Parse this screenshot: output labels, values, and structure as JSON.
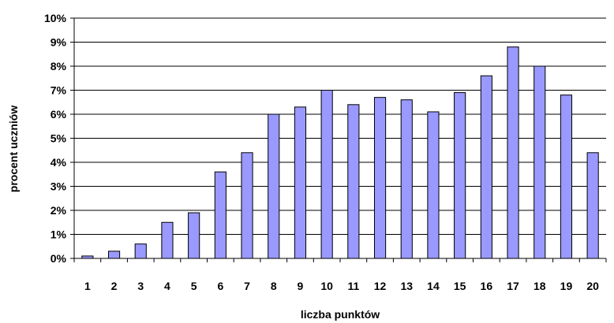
{
  "chart_data": {
    "type": "bar",
    "categories": [
      "1",
      "2",
      "3",
      "4",
      "5",
      "6",
      "7",
      "8",
      "9",
      "10",
      "11",
      "12",
      "13",
      "14",
      "15",
      "16",
      "17",
      "18",
      "19",
      "20"
    ],
    "values": [
      0.1,
      0.3,
      0.6,
      1.5,
      1.9,
      3.6,
      4.4,
      6.0,
      6.3,
      7.0,
      6.4,
      6.7,
      6.6,
      6.1,
      6.9,
      7.6,
      8.8,
      8.0,
      6.8,
      4.4
    ],
    "ylim": [
      0,
      10
    ],
    "yticks": [
      0,
      1,
      2,
      3,
      4,
      5,
      6,
      7,
      8,
      9,
      10
    ],
    "ytick_labels": [
      "0%",
      "1%",
      "2%",
      "3%",
      "4%",
      "5%",
      "6%",
      "7%",
      "8%",
      "9%",
      "10%"
    ],
    "xlabel": "liczba punktów",
    "ylabel": "procent uczniów",
    "grid": "horizontal",
    "colors": {
      "bar_fill": "#9999ff",
      "bar_stroke": "#000000",
      "grid": "#000000"
    }
  }
}
